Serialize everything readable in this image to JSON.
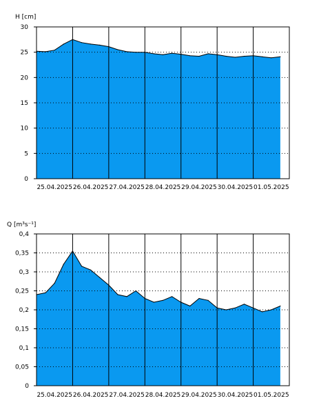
{
  "colors": {
    "fill": "#0a99f0",
    "line": "#000000",
    "grid": "#000000",
    "background": "#ffffff"
  },
  "chart_data": [
    {
      "type": "area",
      "ylabel": "H [cm]",
      "xlabel": "",
      "ylim": [
        0,
        30
      ],
      "y_ticks": [
        0,
        5,
        10,
        15,
        20,
        25,
        30
      ],
      "y_tick_labels": [
        "0",
        "5",
        "10",
        "15",
        "20",
        "25",
        "30"
      ],
      "x_range": [
        "2025-04-25T00:00",
        "2025-05-01T23:59"
      ],
      "x_tick_labels": [
        "25.04.2025",
        "26.04.2025",
        "27.04.2025",
        "28.04.2025",
        "29.04.2025",
        "30.04.2025",
        "01.05.2025"
      ],
      "grid": "horizontal dotted, vertical solid at day boundaries",
      "series": [
        {
          "x": [
            "2025-04-25T00:00",
            "2025-04-25T06:00",
            "2025-04-25T12:00",
            "2025-04-25T18:00",
            "2025-04-26T00:00",
            "2025-04-26T06:00",
            "2025-04-26T12:00",
            "2025-04-26T18:00",
            "2025-04-27T00:00",
            "2025-04-27T06:00",
            "2025-04-27T12:00",
            "2025-04-27T18:00",
            "2025-04-28T00:00",
            "2025-04-28T06:00",
            "2025-04-28T12:00",
            "2025-04-28T18:00",
            "2025-04-29T00:00",
            "2025-04-29T06:00",
            "2025-04-29T12:00",
            "2025-04-29T18:00",
            "2025-04-30T00:00",
            "2025-04-30T06:00",
            "2025-04-30T12:00",
            "2025-04-30T18:00",
            "2025-05-01T00:00",
            "2025-05-01T06:00",
            "2025-05-01T12:00",
            "2025-05-01T18:00"
          ],
          "values": [
            25.2,
            25.1,
            25.4,
            26.6,
            27.5,
            26.9,
            26.6,
            26.4,
            26.1,
            25.5,
            25.1,
            25.0,
            25.0,
            24.7,
            24.5,
            24.8,
            24.6,
            24.3,
            24.2,
            24.7,
            24.5,
            24.2,
            24.0,
            24.2,
            24.3,
            24.1,
            23.9,
            24.1
          ]
        }
      ]
    },
    {
      "type": "area",
      "ylabel": "Q [m³s⁻¹]",
      "xlabel": "",
      "ylim": [
        0,
        0.4
      ],
      "y_ticks": [
        0,
        0.05,
        0.1,
        0.15,
        0.2,
        0.25,
        0.3,
        0.35,
        0.4
      ],
      "y_tick_labels": [
        "0",
        "0,05",
        "0,1",
        "0,15",
        "0,2",
        "0,25",
        "0,3",
        "0,35",
        "0,4"
      ],
      "x_range": [
        "2025-04-25T00:00",
        "2025-05-01T23:59"
      ],
      "x_tick_labels": [
        "25.04.2025",
        "26.04.2025",
        "27.04.2025",
        "28.04.2025",
        "29.04.2025",
        "30.04.2025",
        "01.05.2025"
      ],
      "grid": "horizontal dotted, vertical solid at day boundaries",
      "series": [
        {
          "x": [
            "2025-04-25T00:00",
            "2025-04-25T06:00",
            "2025-04-25T12:00",
            "2025-04-25T18:00",
            "2025-04-26T00:00",
            "2025-04-26T06:00",
            "2025-04-26T12:00",
            "2025-04-26T18:00",
            "2025-04-27T00:00",
            "2025-04-27T06:00",
            "2025-04-27T12:00",
            "2025-04-27T18:00",
            "2025-04-28T00:00",
            "2025-04-28T06:00",
            "2025-04-28T12:00",
            "2025-04-28T18:00",
            "2025-04-29T00:00",
            "2025-04-29T06:00",
            "2025-04-29T12:00",
            "2025-04-29T18:00",
            "2025-04-30T00:00",
            "2025-04-30T06:00",
            "2025-04-30T12:00",
            "2025-04-30T18:00",
            "2025-05-01T00:00",
            "2025-05-01T06:00",
            "2025-05-01T12:00",
            "2025-05-01T18:00"
          ],
          "values": [
            0.24,
            0.245,
            0.27,
            0.32,
            0.355,
            0.315,
            0.305,
            0.285,
            0.265,
            0.24,
            0.235,
            0.25,
            0.23,
            0.22,
            0.225,
            0.235,
            0.22,
            0.21,
            0.23,
            0.225,
            0.205,
            0.2,
            0.205,
            0.215,
            0.205,
            0.195,
            0.2,
            0.21
          ]
        }
      ]
    }
  ]
}
